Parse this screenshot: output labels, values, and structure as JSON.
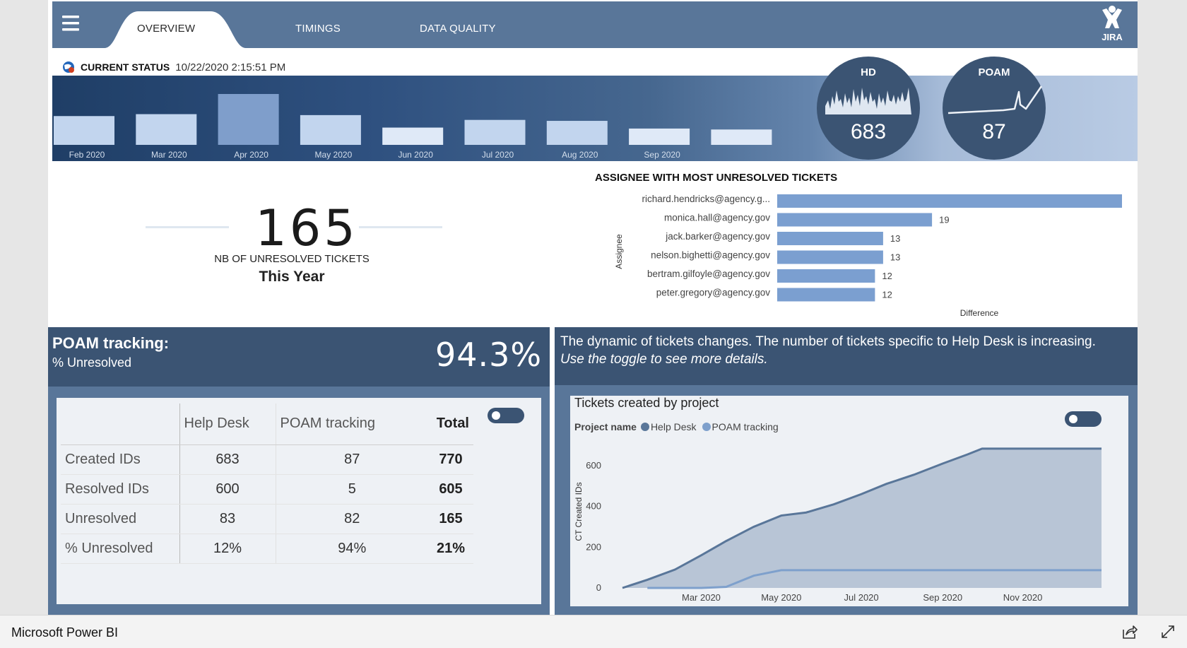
{
  "nav": {
    "tabs": [
      {
        "label": "OVERVIEW",
        "active": true
      },
      {
        "label": "TIMINGS",
        "active": false
      },
      {
        "label": "DATA QUALITY",
        "active": false
      }
    ],
    "logo_text": "JIRA"
  },
  "status": {
    "label": "CURRENT STATUS",
    "timestamp": "10/22/2020 2:15:51 PM"
  },
  "monthly_strip": {
    "months": [
      "Feb 2020",
      "Mar 2020",
      "Apr 2020",
      "May 2020",
      "Jun 2020",
      "Jul 2020",
      "Aug 2020",
      "Sep 2020",
      ""
    ],
    "values": [
      30,
      32,
      53,
      31,
      18,
      26,
      25,
      17,
      16
    ],
    "highlight_index": 2
  },
  "badges": [
    {
      "title": "HD",
      "value": "683"
    },
    {
      "title": "POAM",
      "value": "87"
    }
  ],
  "kpi": {
    "value": "165",
    "label": "NB OF UNRESOLVED TICKETS",
    "sublabel": "This Year"
  },
  "assignee_chart": {
    "title": "ASSIGNEE WITH MOST UNRESOLVED TICKETS",
    "ylabel": "Assignee",
    "xlabel": "Difference",
    "chart_data": {
      "type": "bar",
      "categories": [
        "richard.hendricks@agency.g...",
        "monica.hall@agency.gov",
        "jack.barker@agency.gov",
        "nelson.bighetti@agency.gov",
        "bertram.gilfoyle@agency.gov",
        "peter.gregory@agency.gov"
      ],
      "values": [
        47,
        19,
        13,
        13,
        12,
        12
      ],
      "xlim": [
        0,
        47
      ]
    }
  },
  "poam": {
    "title": "POAM tracking:",
    "subtitle": "% Unresolved",
    "percent": "94.3%"
  },
  "matrix": {
    "headers": [
      "",
      "Help Desk",
      "POAM tracking",
      "Total"
    ],
    "rows": [
      {
        "label": "Created IDs",
        "help_desk": "683",
        "poam": "87",
        "total": "770"
      },
      {
        "label": "Resolved IDs",
        "help_desk": "600",
        "poam": "5",
        "total": "605"
      },
      {
        "label": "Unresolved",
        "help_desk": "83",
        "poam": "82",
        "total": "165"
      },
      {
        "label": "% Unresolved",
        "help_desk": "12%",
        "poam": "94%",
        "total": "21%"
      }
    ]
  },
  "dynamic": {
    "line1": "The dynamic of tickets changes. The number of tickets specific to Help Desk is increasing.",
    "line2": "Use the toggle to see more details."
  },
  "created_chart": {
    "title": "Tickets created by project",
    "legend_title": "Project name",
    "chart_data": {
      "type": "area",
      "ylabel": "CT Created IDs",
      "xlabel": "",
      "x_ticks": [
        "Mar 2020",
        "May 2020",
        "Jul 2020",
        "Sep 2020",
        "Nov 2020"
      ],
      "y_ticks": [
        0,
        200,
        400,
        600
      ],
      "ylim": [
        0,
        700
      ],
      "x": [
        "2020-01-01",
        "2020-01-20",
        "2020-02-10",
        "2020-03-01",
        "2020-03-20",
        "2020-04-10",
        "2020-05-01",
        "2020-05-20",
        "2020-06-10",
        "2020-07-01",
        "2020-07-20",
        "2020-08-10",
        "2020-09-01",
        "2020-09-20",
        "2020-10-01",
        "2020-10-22",
        "2020-12-31"
      ],
      "series": [
        {
          "name": "Help Desk",
          "color": "#597699",
          "values": [
            0,
            40,
            90,
            160,
            230,
            300,
            355,
            370,
            410,
            460,
            510,
            555,
            610,
            655,
            683,
            683,
            683
          ]
        },
        {
          "name": "POAM tracking",
          "color": "#7ea0cc",
          "values": [
            null,
            0,
            0,
            0,
            5,
            60,
            87,
            87,
            87,
            87,
            87,
            87,
            87,
            87,
            87,
            87,
            87
          ]
        }
      ]
    }
  },
  "app": {
    "name": "Microsoft Power BI"
  }
}
